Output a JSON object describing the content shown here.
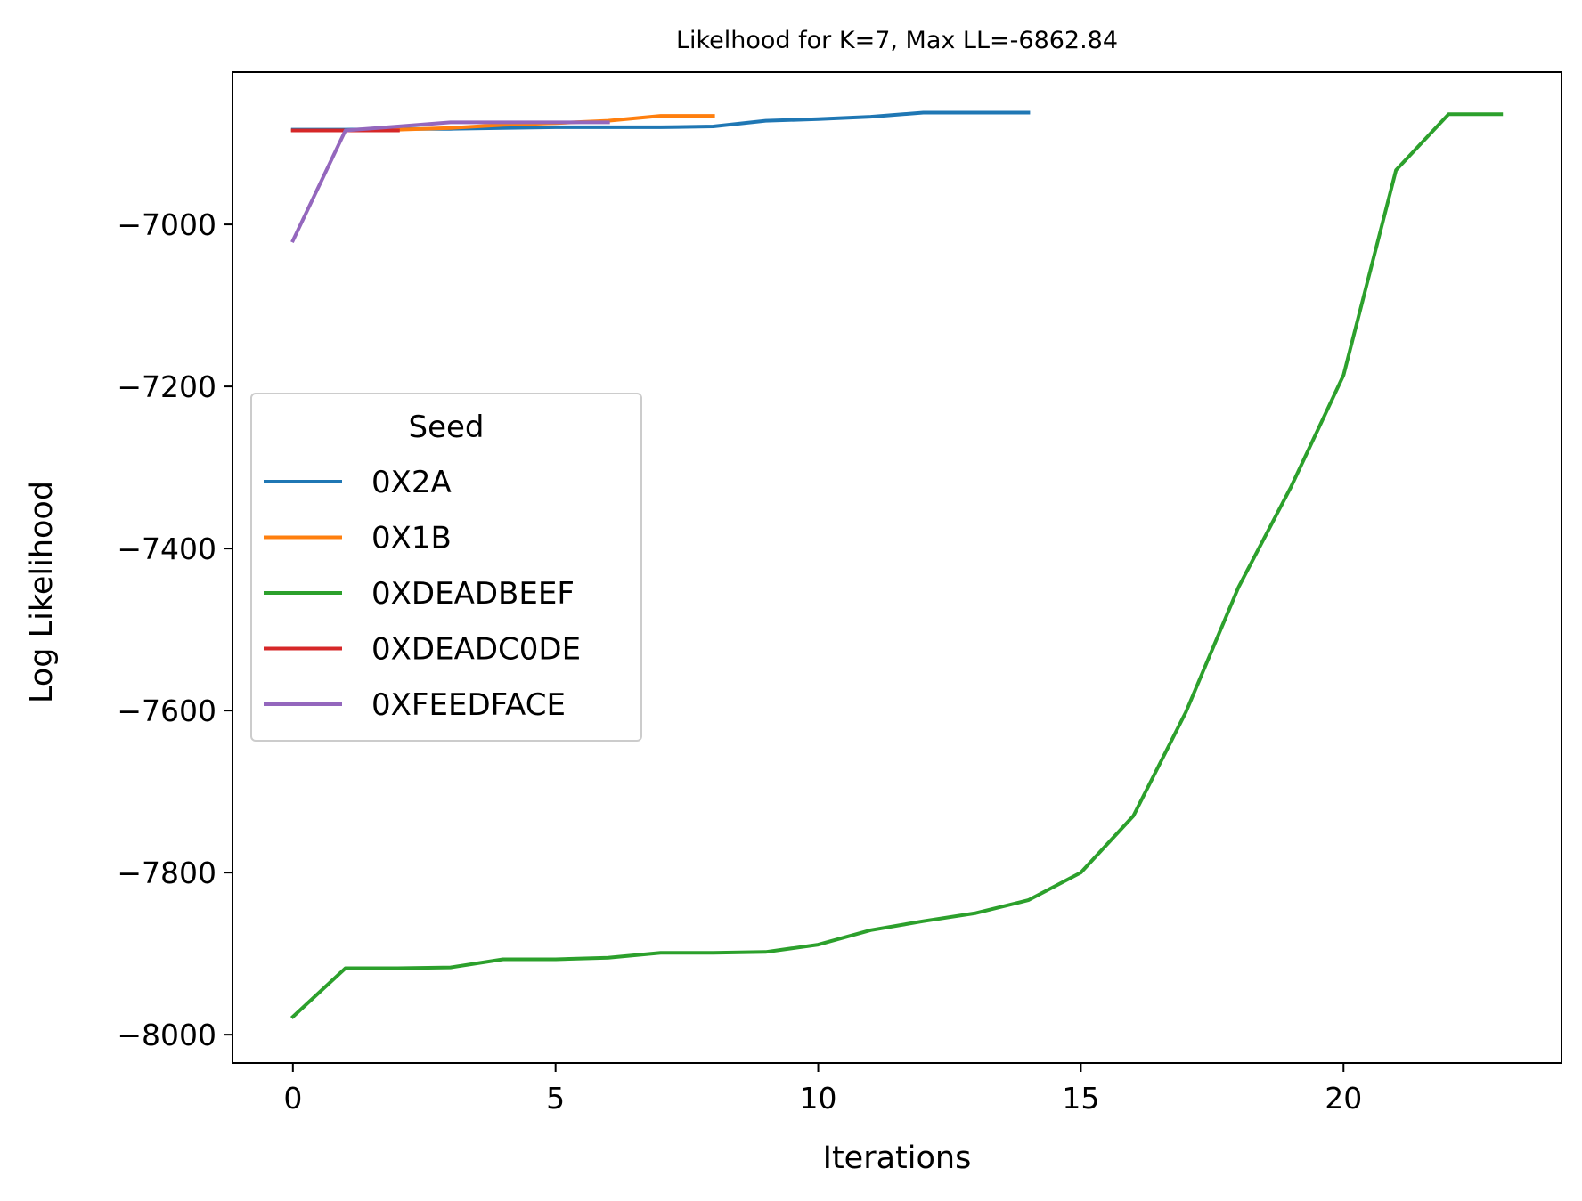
{
  "chart_data": {
    "type": "line",
    "title": "Likelhood for K=7,  Max LL=-6862.84",
    "xlabel": "Iterations",
    "ylabel": "Log Likelihood",
    "xlim": [
      -1.15,
      24.15
    ],
    "ylim": [
      -8035,
      -6812
    ],
    "xticks": [
      0,
      5,
      10,
      15,
      20
    ],
    "yticks": [
      -8000,
      -7800,
      -7600,
      -7400,
      -7200,
      -7000
    ],
    "grid": false,
    "legend": {
      "title": "Seed",
      "placement": "center-left"
    },
    "series": [
      {
        "name": "0X2A",
        "color": "#1f77b4",
        "x": [
          0,
          1,
          2,
          3,
          4,
          5,
          6,
          7,
          8,
          9,
          10,
          11,
          12,
          13,
          14
        ],
        "y": [
          -6883,
          -6883,
          -6882,
          -6882,
          -6881,
          -6880,
          -6880,
          -6880,
          -6879,
          -6872,
          -6870,
          -6867,
          -6862,
          -6862,
          -6862
        ]
      },
      {
        "name": "0X1B",
        "color": "#ff7f0e",
        "x": [
          0,
          1,
          2,
          3,
          4,
          5,
          6,
          7,
          8
        ],
        "y": [
          -6884,
          -6884,
          -6883,
          -6881,
          -6877,
          -6875,
          -6872,
          -6866,
          -6866
        ]
      },
      {
        "name": "0XDEADBEEF",
        "color": "#2ca02c",
        "x": [
          0,
          1,
          2,
          3,
          4,
          5,
          6,
          7,
          8,
          9,
          10,
          11,
          12,
          13,
          14,
          15,
          16,
          17,
          18,
          19,
          20,
          21,
          22,
          23
        ],
        "y": [
          -7978,
          -7918,
          -7918,
          -7917,
          -7907,
          -7907,
          -7905,
          -7899,
          -7899,
          -7898,
          -7889,
          -7871,
          -7860,
          -7850,
          -7834,
          -7800,
          -7730,
          -7602,
          -7448,
          -7324,
          -7186,
          -6933,
          -6864,
          -6864
        ]
      },
      {
        "name": "0XDEADC0DE",
        "color": "#d62728",
        "x": [
          0,
          1,
          2
        ],
        "y": [
          -6884,
          -6884,
          -6884
        ]
      },
      {
        "name": "0XFEEDFACE",
        "color": "#9467bd",
        "x": [
          0,
          1,
          2,
          3,
          4,
          5,
          6
        ],
        "y": [
          -7020,
          -6884,
          -6879,
          -6874,
          -6874,
          -6874,
          -6874
        ]
      }
    ]
  }
}
